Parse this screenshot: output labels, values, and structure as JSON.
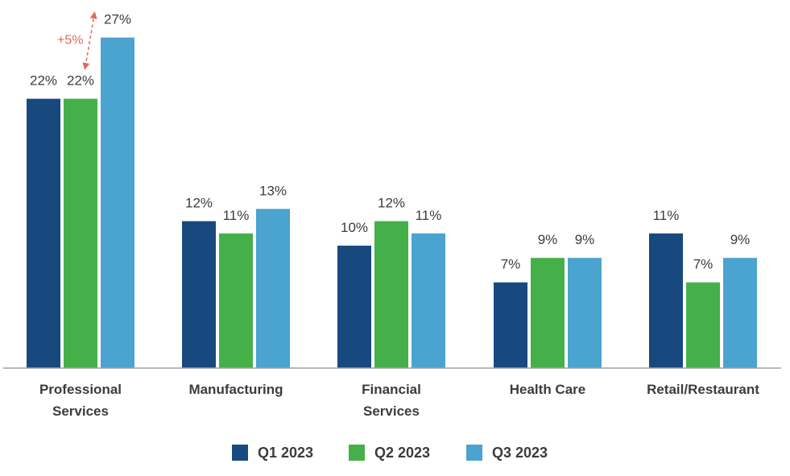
{
  "chart_data": {
    "type": "bar",
    "title": "",
    "xlabel": "",
    "ylabel": "",
    "ylim": [
      0,
      27
    ],
    "grid": false,
    "legend_position": "bottom",
    "categories": [
      [
        "Professional",
        "Services"
      ],
      [
        "Manufacturing"
      ],
      [
        "Financial",
        "Services"
      ],
      [
        "Health Care"
      ],
      [
        "Retail/Restaurant"
      ]
    ],
    "series": [
      {
        "name": "Q1 2023",
        "color": "#17497f",
        "values": [
          22,
          12,
          10,
          7,
          11
        ],
        "labels": [
          "22%",
          "12%",
          "10%",
          "7%",
          "11%"
        ]
      },
      {
        "name": "Q2 2023",
        "color": "#45b04a",
        "values": [
          22,
          11,
          12,
          9,
          7
        ],
        "labels": [
          "22%",
          "11%",
          "12%",
          "9%",
          "7%"
        ]
      },
      {
        "name": "Q3 2023",
        "color": "#4ba3cf",
        "values": [
          27,
          13,
          11,
          9,
          9
        ],
        "labels": [
          "27%",
          "13%",
          "11%",
          "9%",
          "9%"
        ]
      }
    ],
    "annotation": {
      "text": "+5%",
      "color": "#e06a5e",
      "category_index": 0,
      "from_series": 1,
      "to_series": 2
    }
  }
}
